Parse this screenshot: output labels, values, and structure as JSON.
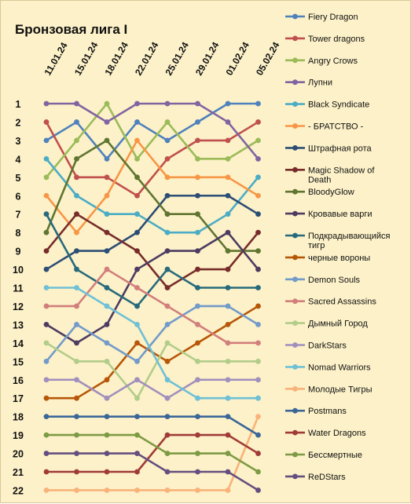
{
  "chart_data": {
    "type": "line",
    "title": "Бронзовая лига I",
    "x": [
      "11.01.24",
      "15.01.24",
      "18.01.24",
      "22.01.24",
      "25.01.24",
      "29.01.24",
      "01.02.24",
      "05.02.24"
    ],
    "y_ticks": [
      1,
      2,
      3,
      4,
      5,
      6,
      7,
      8,
      9,
      10,
      11,
      12,
      13,
      14,
      15,
      16,
      17,
      18,
      19,
      20,
      21,
      22
    ],
    "ylim": [
      1,
      22
    ],
    "y_inverted": true,
    "grid": false,
    "legend_position": "right",
    "series": [
      {
        "name": "Fiery Dragon",
        "color": "#4f81bd",
        "values": [
          3,
          2,
          4,
          2,
          3,
          2,
          1,
          1
        ]
      },
      {
        "name": "Tower dragons",
        "color": "#c0504d",
        "values": [
          2,
          5,
          5,
          6,
          4,
          3,
          3,
          2
        ]
      },
      {
        "name": "Angry Crows",
        "color": "#9bbb59",
        "values": [
          5,
          3,
          1,
          4,
          2,
          4,
          4,
          3
        ]
      },
      {
        "name": "Лупни",
        "color": "#8064a2",
        "values": [
          1,
          1,
          2,
          1,
          1,
          1,
          2,
          4
        ]
      },
      {
        "name": "Black Syndicate",
        "color": "#4bacc6",
        "values": [
          4,
          6,
          7,
          7,
          8,
          8,
          7,
          5
        ]
      },
      {
        "name": "- БРАТСТВО -",
        "color": "#f79646",
        "values": [
          6,
          8,
          6,
          3,
          5,
          5,
          5,
          6
        ]
      },
      {
        "name": "Штрафная рота",
        "color": "#2c4d75",
        "values": [
          10,
          9,
          9,
          8,
          6,
          6,
          6,
          7
        ]
      },
      {
        "name": "Magic Shadow of Death",
        "color": "#772c2a",
        "values": [
          9,
          7,
          8,
          9,
          11,
          10,
          10,
          8
        ]
      },
      {
        "name": "BloodyGlow",
        "color": "#5f7530",
        "values": [
          8,
          4,
          3,
          5,
          7,
          7,
          9,
          9
        ]
      },
      {
        "name": "Кровавые варги",
        "color": "#4d3b62",
        "values": [
          13,
          14,
          13,
          10,
          9,
          9,
          8,
          10
        ]
      },
      {
        "name": "Подкрадывающийся тигр",
        "color": "#276a7c",
        "values": [
          7,
          10,
          11,
          12,
          10,
          11,
          11,
          11
        ]
      },
      {
        "name": "черные вороны",
        "color": "#b65708",
        "values": [
          17,
          17,
          16,
          14,
          15,
          14,
          13,
          12
        ]
      },
      {
        "name": "Demon Souls",
        "color": "#729aca",
        "values": [
          15,
          13,
          14,
          15,
          13,
          12,
          12,
          13
        ]
      },
      {
        "name": "Sacred Assassins",
        "color": "#d27e7c",
        "values": [
          12,
          12,
          10,
          11,
          12,
          13,
          14,
          14
        ]
      },
      {
        "name": "Дымный Город",
        "color": "#b2cc8a",
        "values": [
          14,
          15,
          15,
          17,
          14,
          15,
          15,
          15
        ]
      },
      {
        "name": "DarkStars",
        "color": "#a18fbd",
        "values": [
          16,
          16,
          17,
          16,
          17,
          16,
          16,
          16
        ]
      },
      {
        "name": "Nomad Warriors",
        "color": "#6fc0d6",
        "values": [
          11,
          11,
          12,
          13,
          16,
          17,
          17,
          17
        ]
      },
      {
        "name": "Молодые Тигры",
        "color": "#f9b27a",
        "values": [
          22,
          22,
          22,
          22,
          22,
          22,
          22,
          18
        ]
      },
      {
        "name": "Postmans",
        "color": "#3a6698",
        "values": [
          18,
          18,
          18,
          18,
          18,
          18,
          18,
          19
        ]
      },
      {
        "name": "Water Dragons",
        "color": "#a03b38",
        "values": [
          21,
          21,
          21,
          21,
          19,
          19,
          19,
          20
        ]
      },
      {
        "name": "Бессмертные",
        "color": "#7d9a44",
        "values": [
          19,
          19,
          19,
          19,
          20,
          20,
          20,
          21
        ]
      },
      {
        "name": "ReDStars",
        "color": "#654e80",
        "values": [
          20,
          20,
          20,
          20,
          21,
          21,
          21,
          22
        ]
      }
    ]
  }
}
